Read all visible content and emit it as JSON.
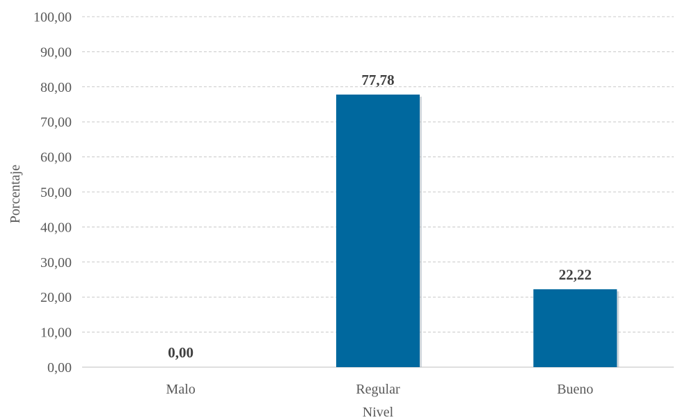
{
  "chart_data": {
    "type": "bar",
    "categories": [
      "Malo",
      "Regular",
      "Bueno"
    ],
    "values": [
      0.0,
      77.78,
      22.22
    ],
    "data_labels": [
      "0,00",
      "77,78",
      "22,22"
    ],
    "y_ticks": [
      "0,00",
      "10,00",
      "20,00",
      "30,00",
      "40,00",
      "50,00",
      "60,00",
      "70,00",
      "80,00",
      "90,00",
      "100,00"
    ],
    "ylim": [
      0,
      100
    ],
    "xlabel": "Nivel",
    "ylabel": "Porcentaje",
    "grid": true,
    "bar_color": "#00689e"
  }
}
